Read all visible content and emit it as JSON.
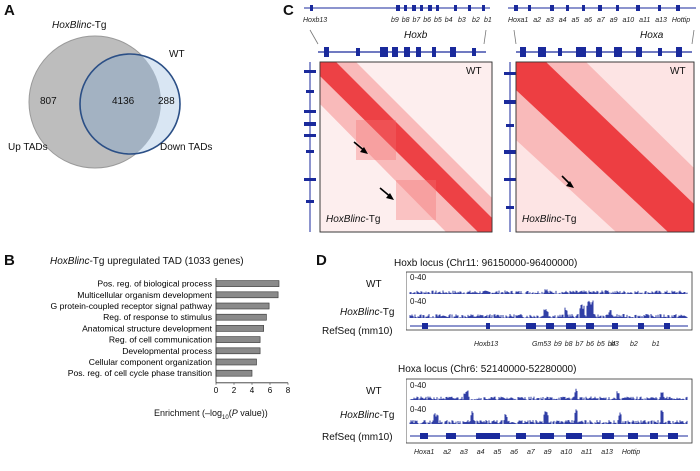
{
  "panel_a": {
    "letter": "A",
    "label_tg_italic": "HoxBlinc",
    "label_tg_suffix": "-Tg",
    "label_wt": "WT",
    "only_tg": "807",
    "overlap": "4136",
    "only_wt": "288",
    "up_label": "Up TADs",
    "down_label": "Down TADs",
    "colors": {
      "tg_fill": "#bdbdbd",
      "wt_fill": "#d9e6f3",
      "wt_stroke": "#2b4f86",
      "overlap_fill": "#9fb2c6"
    }
  },
  "panel_b": {
    "letter": "B",
    "title_italic": "HoxBlinc",
    "title_rest": "-Tg upregulated TAD (1033 genes)",
    "xlabel_prefix": "Enrichment (–log",
    "xlabel_sub": "10",
    "xlabel_open": "(",
    "xlabel_p": "P",
    "xlabel_suffix": " value))",
    "ticks": [
      "0",
      "2",
      "4",
      "6",
      "8"
    ]
  },
  "chart_data": {
    "type": "bar",
    "orientation": "horizontal",
    "categories": [
      "Pos. reg. of biological process",
      "Multicellular organism development",
      "G protein-coupled receptor signal pathway",
      "Reg. of response to stimulus",
      "Anatomical structure development",
      "Reg. of cell communication",
      "Developmental process",
      "Cellular component organization",
      "Pos. reg. of cell cycle phase transition"
    ],
    "values": [
      7.0,
      6.9,
      5.9,
      5.6,
      5.3,
      4.9,
      4.9,
      4.5,
      4.0
    ],
    "xlim": [
      0,
      8
    ],
    "bar_color": "#8a8a8a"
  },
  "panel_c": {
    "letter": "C",
    "hoxb_genes": [
      "Hoxb13",
      "b9",
      "b8",
      "b7",
      "b6",
      "b5",
      "b4",
      "b3",
      "b2",
      "b1"
    ],
    "hoxa_genes": [
      "Hoxa1",
      "a2",
      "a3",
      "a4",
      "a5",
      "a6",
      "a7",
      "a9",
      "a10",
      "a11",
      "a13",
      "Hottip"
    ],
    "hoxb_label": "Hoxb",
    "hoxa_label": "Hoxa",
    "wt": "WT",
    "tg_italic": "HoxBlinc",
    "tg_suffix": "-Tg",
    "heat_color": "#e8141b"
  },
  "panel_d": {
    "letter": "D",
    "hoxb_title": "Hoxb locus (Chr11: 96150000-96400000)",
    "hoxa_title": "Hoxa locus (Chr6: 52140000-52280000)",
    "wt": "WT",
    "tg_italic": "HoxBlinc",
    "tg_suffix": "-Tg",
    "refseq": "RefSeq (mm10)",
    "range": "0-40",
    "hoxb_genes": [
      "Hoxb13",
      "Gm53",
      "b9",
      "b8",
      "b7",
      "b6",
      "b5",
      "b4",
      "b3",
      "b2",
      "b1"
    ],
    "hoxa_genes": [
      "Hoxa1",
      "a2",
      "a3",
      "a4",
      "a5",
      "a6",
      "a7",
      "a9",
      "a10",
      "a11",
      "a13",
      "Hottip"
    ],
    "track_color": "#1a2a9c"
  }
}
